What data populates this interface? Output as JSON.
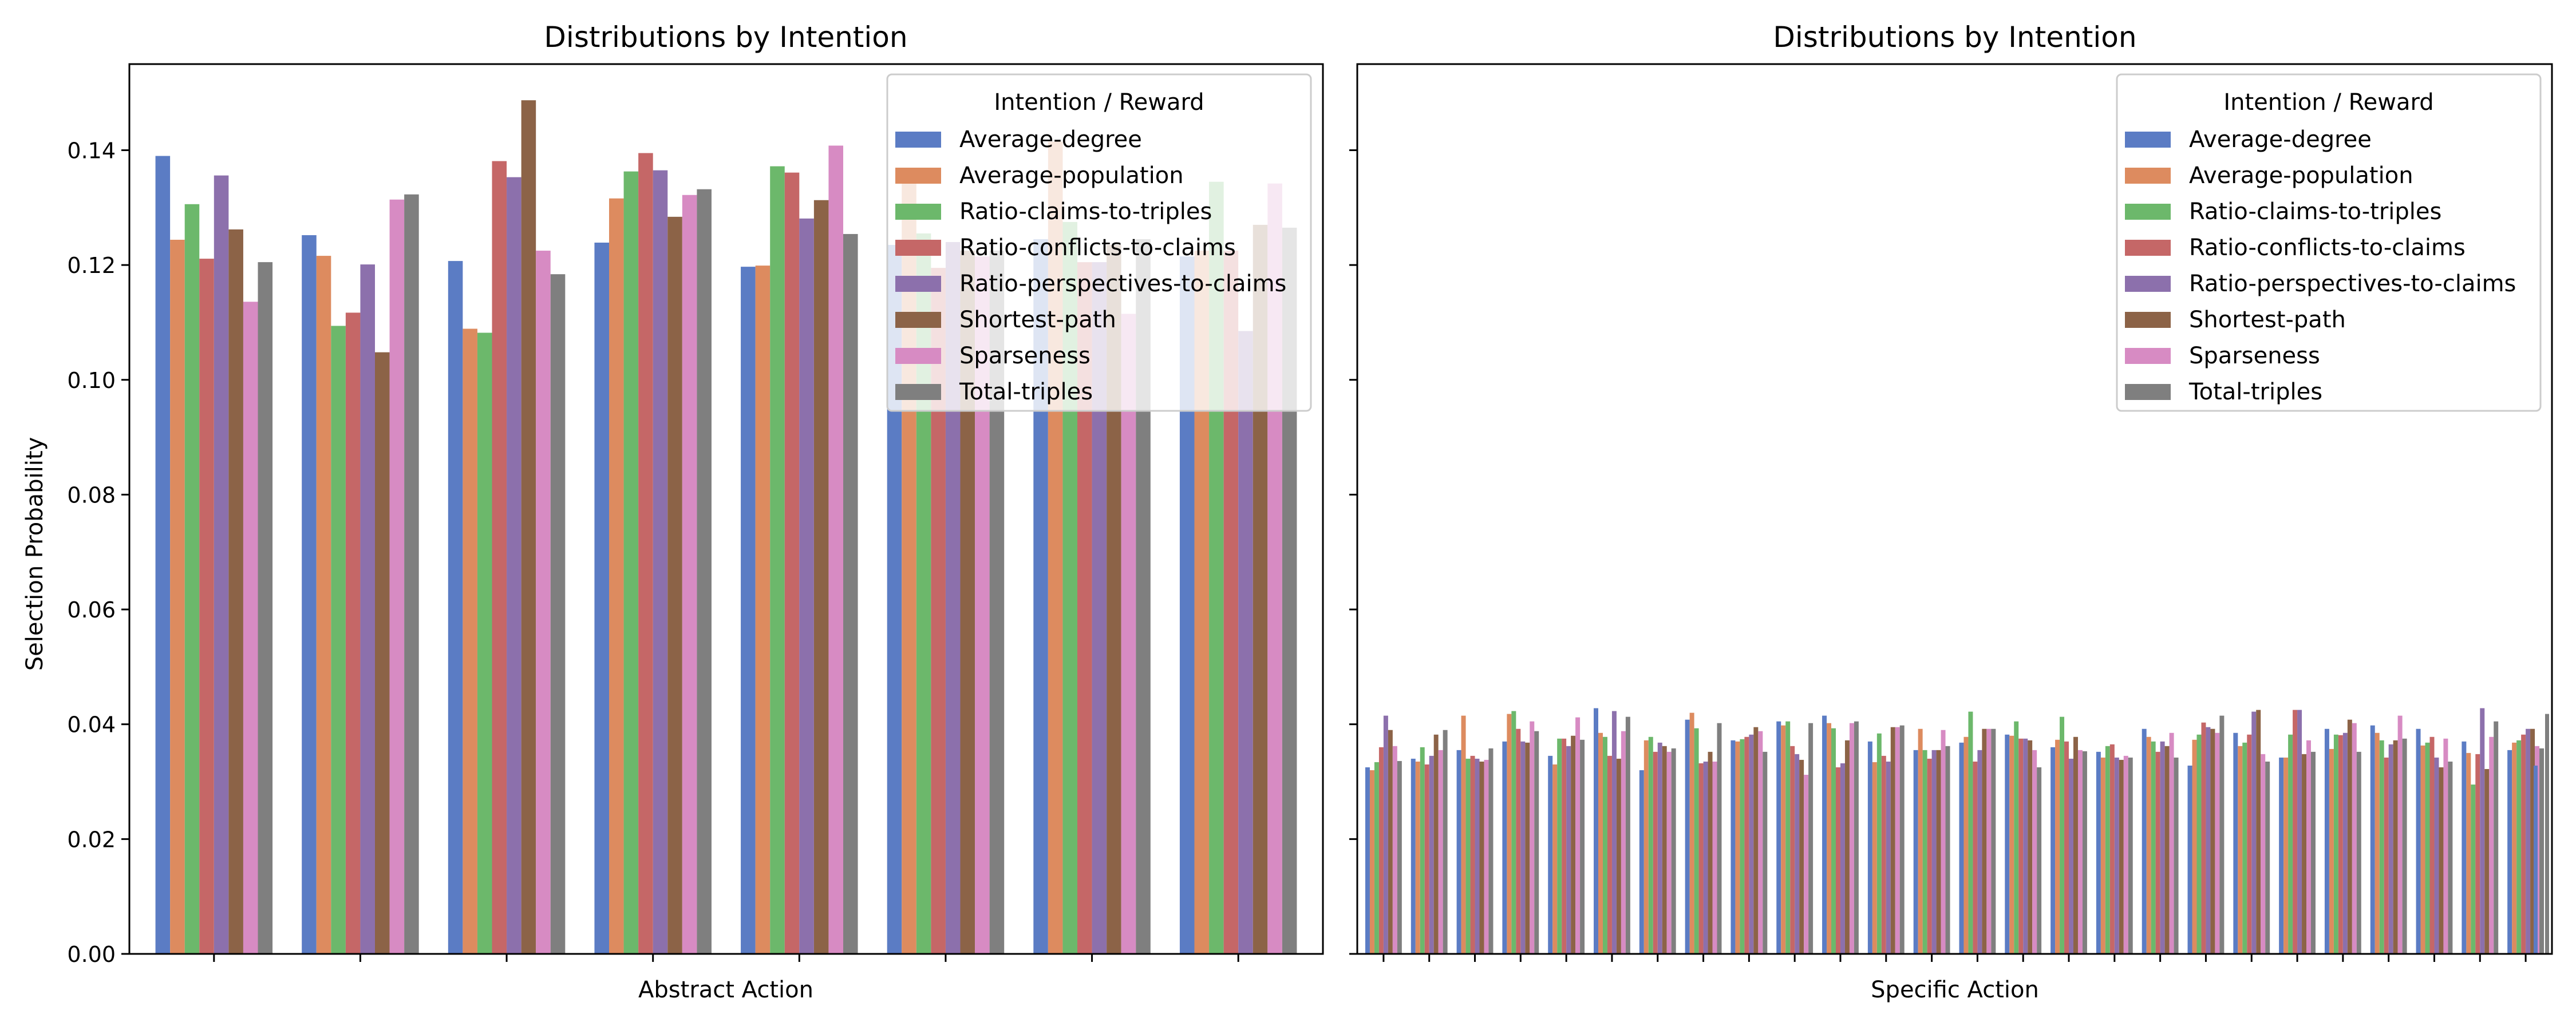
{
  "chart_data": [
    {
      "type": "bar",
      "title": "Distributions by Intention",
      "xlabel": "Abstract Action",
      "ylabel": "Selection Probability",
      "ylim": [
        0,
        0.155
      ],
      "yticks": [
        "0.00",
        "0.02",
        "0.04",
        "0.06",
        "0.08",
        "0.10",
        "0.12",
        "0.14"
      ],
      "xtick_labels_shown": false,
      "grid": false,
      "legend": {
        "title": "Intention / Reward",
        "placement": "top-right"
      },
      "categories": [
        "",
        "",
        "",
        "",
        "",
        "",
        "",
        ""
      ],
      "series": [
        {
          "name": "Average-degree",
          "color": "#5b7cc4",
          "values": [
            0.139,
            0.1252,
            0.1207,
            0.1239,
            0.1197,
            0.1235,
            0.1245,
            0.1215
          ]
        },
        {
          "name": "Average-population",
          "color": "#dd8b5f",
          "values": [
            0.1244,
            0.1216,
            0.1089,
            0.1316,
            0.1199,
            0.135,
            0.1415,
            0.1225
          ]
        },
        {
          "name": "Ratio-claims-to-triples",
          "color": "#6cb86b",
          "values": [
            0.1306,
            0.1094,
            0.1082,
            0.1363,
            0.1372,
            0.1255,
            0.1275,
            0.1345
          ]
        },
        {
          "name": "Ratio-conflicts-to-claims",
          "color": "#c56767",
          "values": [
            0.1211,
            0.1117,
            0.1381,
            0.1395,
            0.1361,
            0.1195,
            0.1205,
            0.1225
          ]
        },
        {
          "name": "Ratio-perspectives-to-claims",
          "color": "#8c70ac",
          "values": [
            0.1356,
            0.1201,
            0.1353,
            0.1365,
            0.1281,
            0.124,
            0.1205,
            0.1085
          ]
        },
        {
          "name": "Shortest-path",
          "color": "#8c6347",
          "values": [
            0.1262,
            0.1048,
            0.1487,
            0.1284,
            0.1313,
            0.1225,
            0.1235,
            0.127
          ]
        },
        {
          "name": "Sparseness",
          "color": "#d78bc3",
          "values": [
            0.1136,
            0.1314,
            0.1225,
            0.1322,
            0.1408,
            0.1215,
            0.1115,
            0.1342
          ]
        },
        {
          "name": "Total-triples",
          "color": "#7f7f7f",
          "values": [
            0.1205,
            0.1323,
            0.1184,
            0.1332,
            0.1254,
            0.1225,
            0.1245,
            0.1265
          ]
        }
      ]
    },
    {
      "type": "bar",
      "title": "Distributions by Intention",
      "xlabel": "Specific Action",
      "ylabel": "",
      "ylim": [
        0,
        0.155
      ],
      "xtick_labels_shown": false,
      "grid": false,
      "shared_y_with_left": true,
      "legend": {
        "title": "Intention / Reward",
        "placement": "top-right"
      },
      "categories": [
        "",
        "",
        "",
        "",
        "",
        "",
        "",
        "",
        "",
        "",
        "",
        "",
        "",
        "",
        "",
        "",
        "",
        "",
        "",
        "",
        "",
        "",
        "",
        "",
        "",
        ""
      ],
      "series": [
        {
          "name": "Average-degree",
          "color": "#5b7cc4",
          "values": [
            0.0325,
            0.034,
            0.0355,
            0.037,
            0.0345,
            0.0428,
            0.032,
            0.0408,
            0.0372,
            0.0405,
            0.0415,
            0.037,
            0.0355,
            0.0368,
            0.0382,
            0.036,
            0.0352,
            0.0392,
            0.0328,
            0.0385,
            0.0342,
            0.0392,
            0.0398,
            0.0392,
            0.037,
            0.0355
          ]
        },
        {
          "name": "Average-population",
          "color": "#dd8b5f",
          "values": [
            0.032,
            0.0335,
            0.0415,
            0.0418,
            0.033,
            0.0385,
            0.0372,
            0.042,
            0.037,
            0.0398,
            0.0402,
            0.0334,
            0.0392,
            0.0378,
            0.038,
            0.0373,
            0.0342,
            0.0378,
            0.0373,
            0.0362,
            0.0342,
            0.0357,
            0.0385,
            0.0363,
            0.035,
            0.0368
          ]
        },
        {
          "name": "Ratio-claims-to-triples",
          "color": "#6cb86b",
          "values": [
            0.0334,
            0.036,
            0.034,
            0.0423,
            0.0375,
            0.0378,
            0.0378,
            0.0393,
            0.0374,
            0.0405,
            0.0393,
            0.0384,
            0.0355,
            0.0422,
            0.0405,
            0.0413,
            0.0362,
            0.037,
            0.0382,
            0.0368,
            0.0382,
            0.0382,
            0.0372,
            0.0368,
            0.0295,
            0.0372
          ]
        },
        {
          "name": "Ratio-conflicts-to-claims",
          "color": "#c56767",
          "values": [
            0.036,
            0.033,
            0.0345,
            0.0392,
            0.0375,
            0.0345,
            0.0352,
            0.0332,
            0.0378,
            0.0362,
            0.0325,
            0.0345,
            0.034,
            0.0335,
            0.0375,
            0.037,
            0.0365,
            0.0352,
            0.0403,
            0.0382,
            0.0425,
            0.0381,
            0.0342,
            0.0378,
            0.0348,
            0.0382
          ]
        },
        {
          "name": "Ratio-perspectives-to-claims",
          "color": "#8c70ac",
          "values": [
            0.0415,
            0.0345,
            0.034,
            0.037,
            0.0362,
            0.0423,
            0.0368,
            0.0335,
            0.0382,
            0.0348,
            0.0332,
            0.0335,
            0.0355,
            0.0355,
            0.0375,
            0.034,
            0.0342,
            0.037,
            0.0395,
            0.0422,
            0.0425,
            0.0385,
            0.0365,
            0.0342,
            0.0428,
            0.0392
          ]
        },
        {
          "name": "Shortest-path",
          "color": "#8c6347",
          "values": [
            0.039,
            0.0382,
            0.0335,
            0.0368,
            0.038,
            0.034,
            0.0362,
            0.0352,
            0.0395,
            0.0338,
            0.0372,
            0.0395,
            0.0355,
            0.0392,
            0.0372,
            0.0378,
            0.0338,
            0.0362,
            0.0392,
            0.0425,
            0.0348,
            0.0408,
            0.0372,
            0.0325,
            0.0322,
            0.0392
          ]
        },
        {
          "name": "Sparseness",
          "color": "#d78bc3",
          "values": [
            0.0362,
            0.0355,
            0.0338,
            0.0405,
            0.0412,
            0.0388,
            0.0352,
            0.0335,
            0.0388,
            0.0312,
            0.0402,
            0.0395,
            0.039,
            0.0392,
            0.0355,
            0.0355,
            0.0345,
            0.0385,
            0.0385,
            0.0348,
            0.0372,
            0.0402,
            0.0415,
            0.0375,
            0.0378,
            0.0362
          ]
        },
        {
          "name": "Total-triples",
          "color": "#7f7f7f",
          "values": [
            0.0336,
            0.039,
            0.0358,
            0.0388,
            0.0373,
            0.0413,
            0.0358,
            0.0402,
            0.0352,
            0.0402,
            0.0405,
            0.0398,
            0.0362,
            0.0392,
            0.0325,
            0.0353,
            0.0342,
            0.0342,
            0.0415,
            0.0335,
            0.0352,
            0.0352,
            0.0375,
            0.0335,
            0.0405,
            0.0358
          ]
        }
      ],
      "extra_series_tail": {
        "name": "Average-degree",
        "value": 0.0328
      },
      "extra_total_tail": {
        "name": "Total-triples",
        "value": 0.0418
      }
    }
  ]
}
